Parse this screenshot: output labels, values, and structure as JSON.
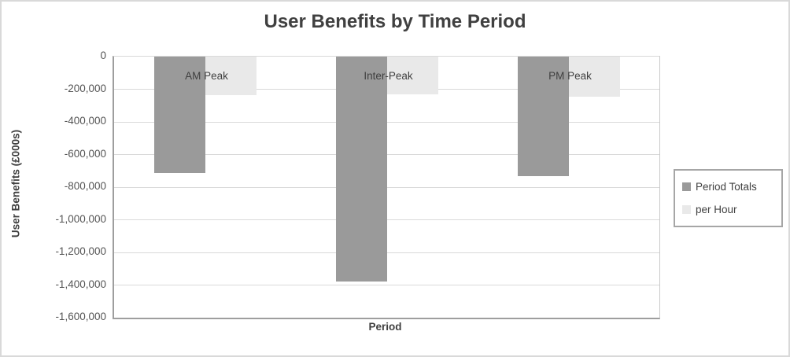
{
  "chart_data": {
    "type": "bar",
    "title": "User Benefits by Time Period",
    "xlabel": "Period",
    "ylabel": "User Benefits (£000s)",
    "categories": [
      "AM Peak",
      "Inter-Peak",
      "PM Peak"
    ],
    "series": [
      {
        "name": "Period Totals",
        "color": "#9a9a9a",
        "values": [
          -711000,
          -1377000,
          -732000
        ]
      },
      {
        "name": "per Hour",
        "color": "#e9e9e9",
        "values": [
          -236000,
          -230000,
          -244000
        ]
      }
    ],
    "ylim": [
      -1600000,
      0
    ],
    "ytick_step": 200000,
    "ytick_labels": [
      "0",
      "-200,000",
      "-400,000",
      "-600,000",
      "-800,000",
      "-1,000,000",
      "-1,200,000",
      "-1,400,000",
      "-1,600,000"
    ],
    "grid": true,
    "legend_position": "right",
    "colors": {
      "title_text": "#404040",
      "axis_text": "#545454",
      "gridline": "#d9d9d9",
      "axis_line": "#9e9e9e",
      "legend_border": "#a6a6a6"
    }
  }
}
